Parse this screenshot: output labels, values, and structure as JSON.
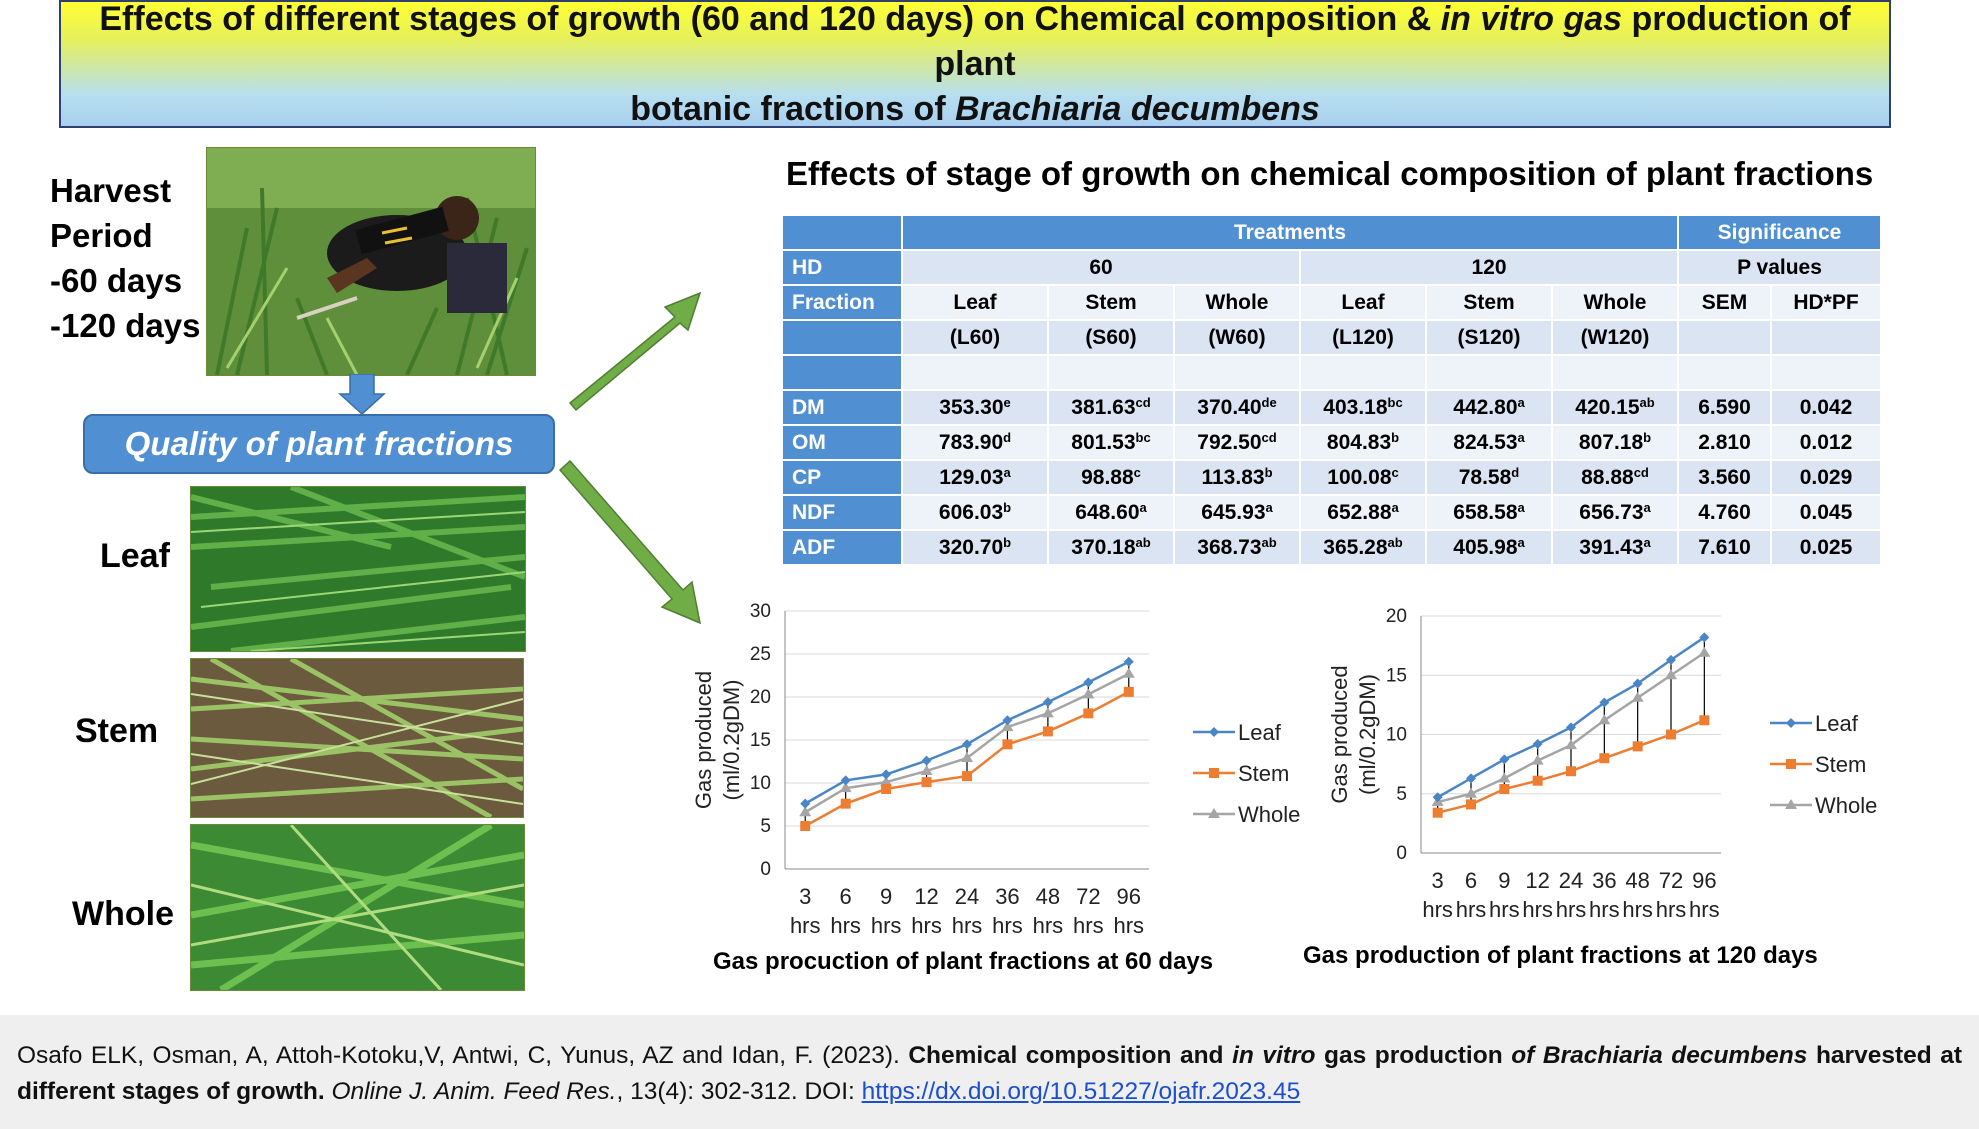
{
  "banner": {
    "line1_a": "Effects of different stages of growth (60 and 120 days)  on Chemical composition & ",
    "line1_italic": "in vitro gas",
    "line1_b": " production of plant",
    "line2_a": "botanic fractions of ",
    "line2_italic": "Brachiaria decumbens"
  },
  "left": {
    "harvest_lines": [
      "Harvest",
      "Period",
      "-60 days",
      "-120 days"
    ],
    "quality_box": "Quality of plant  fractions",
    "fractions": [
      "Leaf",
      "Stem",
      "Whole"
    ]
  },
  "table": {
    "title": "Effects of stage of growth on chemical composition of plant fractions",
    "header_treatments": "Treatments",
    "header_significance": "Significance",
    "hd_label": "HD",
    "hd_60": "60",
    "hd_120": "120",
    "p_values": "P values",
    "fraction_label": "Fraction",
    "fraction_names": [
      "Leaf",
      "Stem",
      "Whole",
      "Leaf",
      "Stem",
      "Whole"
    ],
    "sem_label": "SEM",
    "interaction_label": "HD*PF",
    "codes": [
      "(L60)",
      "(S60)",
      "(W60)",
      "(L120)",
      "(S120)",
      "(W120)"
    ],
    "rows": [
      {
        "label": "DM",
        "values": [
          "353.30",
          "381.63",
          "370.40",
          "403.18",
          "442.80",
          "420.15"
        ],
        "sups": [
          "e",
          "cd",
          "de",
          "bc",
          "a",
          "ab"
        ],
        "sem": "6.590",
        "p": "0.042"
      },
      {
        "label": "OM",
        "values": [
          "783.90",
          "801.53",
          "792.50",
          "804.83",
          "824.53",
          "807.18"
        ],
        "sups": [
          "d",
          "bc",
          "cd",
          "b",
          "a",
          "b"
        ],
        "sem": "2.810",
        "p": "0.012"
      },
      {
        "label": "CP",
        "values": [
          "129.03",
          "98.88",
          "113.83",
          "100.08",
          "78.58",
          "88.88"
        ],
        "sups": [
          "a",
          "c",
          "b",
          "c",
          "d",
          "cd"
        ],
        "sem": "3.560",
        "p": "0.029"
      },
      {
        "label": "NDF",
        "values": [
          "606.03",
          "648.60",
          "645.93",
          "652.88",
          "658.58",
          "656.73"
        ],
        "sups": [
          "b",
          "a",
          "a",
          "a",
          "a",
          "a"
        ],
        "sem": "4.760",
        "p": "0.045"
      },
      {
        "label": "ADF",
        "values": [
          "320.70",
          "370.18",
          "368.73",
          "365.28",
          "405.98",
          "391.43"
        ],
        "sups": [
          "b",
          "ab",
          "ab",
          "ab",
          "a",
          "a"
        ],
        "sem": "7.610",
        "p": "0.025"
      }
    ]
  },
  "chart_data": [
    {
      "type": "line",
      "title": "Gas procuction of plant fractions at 60 days",
      "ylabel": "Gas produced (ml/0.2gDM)",
      "xlabel": "",
      "ylim": [
        0,
        30
      ],
      "yticks": [
        0,
        5,
        10,
        15,
        20,
        25,
        30
      ],
      "categories": [
        "3 hrs",
        "6 hrs",
        "9 hrs",
        "12 hrs",
        "24 hrs",
        "36 hrs",
        "48 hrs",
        "72 hrs",
        "96 hrs"
      ],
      "series": [
        {
          "name": "Leaf",
          "color": "#4a86c5",
          "marker": "diamond",
          "values": [
            7.6,
            10.3,
            11.0,
            12.6,
            14.5,
            17.3,
            19.4,
            21.7,
            24.1
          ]
        },
        {
          "name": "Stem",
          "color": "#ed7d31",
          "marker": "square",
          "values": [
            5.0,
            7.6,
            9.3,
            10.1,
            10.8,
            14.5,
            16.0,
            18.1,
            20.6
          ]
        },
        {
          "name": "Whole",
          "color": "#a5a5a5",
          "marker": "triangle",
          "values": [
            6.6,
            9.4,
            10.1,
            11.4,
            12.9,
            16.5,
            18.1,
            20.3,
            22.7
          ]
        }
      ],
      "high_low_lines": true,
      "grid": "horizontal",
      "legend": "right"
    },
    {
      "type": "line",
      "title": "Gas production of plant fractions at 120 days",
      "ylabel": "Gas produced (ml/0.2gDM)",
      "xlabel": "",
      "ylim": [
        0,
        20
      ],
      "yticks": [
        0,
        5,
        10,
        15,
        20
      ],
      "categories": [
        "3 hrs",
        "6 hrs",
        "9 hrs",
        "12 hrs",
        "24 hrs",
        "36 hrs",
        "48 hrs",
        "72 hrs",
        "96 hrs"
      ],
      "series": [
        {
          "name": "Leaf",
          "color": "#4a86c5",
          "marker": "diamond",
          "values": [
            4.7,
            6.3,
            7.9,
            9.2,
            10.6,
            12.7,
            14.3,
            16.3,
            18.2
          ]
        },
        {
          "name": "Stem",
          "color": "#ed7d31",
          "marker": "square",
          "values": [
            3.4,
            4.1,
            5.4,
            6.1,
            6.9,
            8.0,
            9.0,
            10.0,
            11.2
          ]
        },
        {
          "name": "Whole",
          "color": "#a5a5a5",
          "marker": "triangle",
          "values": [
            4.3,
            5.0,
            6.3,
            7.8,
            9.1,
            11.2,
            13.1,
            15.0,
            16.9
          ]
        }
      ],
      "high_low_lines": true,
      "grid": "horizontal",
      "legend": "right"
    }
  ],
  "citation": {
    "authors": "Osafo ELK, Osman, A, Attoh-Kotoku,V, Antwi, C, Yunus, AZ and Idan, F. (2023). ",
    "title_a": "Chemical composition and ",
    "title_italic1": "in vitro",
    "title_b": " gas production ",
    "title_italic2": "of Brachiaria decumbens",
    "title_c": " harvested at different stages  of growth.",
    "journal": " Online J. Anim. Feed Res.",
    "volume": ", 13(4): 302-312. DOI: ",
    "doi": "https://dx.doi.org/10.51227/ojafr.2023.45"
  },
  "colors": {
    "accent_blue": "#4f8fd2",
    "arrow_green": "#70ad47",
    "leaf": "#4a86c5",
    "stem": "#ed7d31",
    "whole": "#a5a5a5"
  }
}
